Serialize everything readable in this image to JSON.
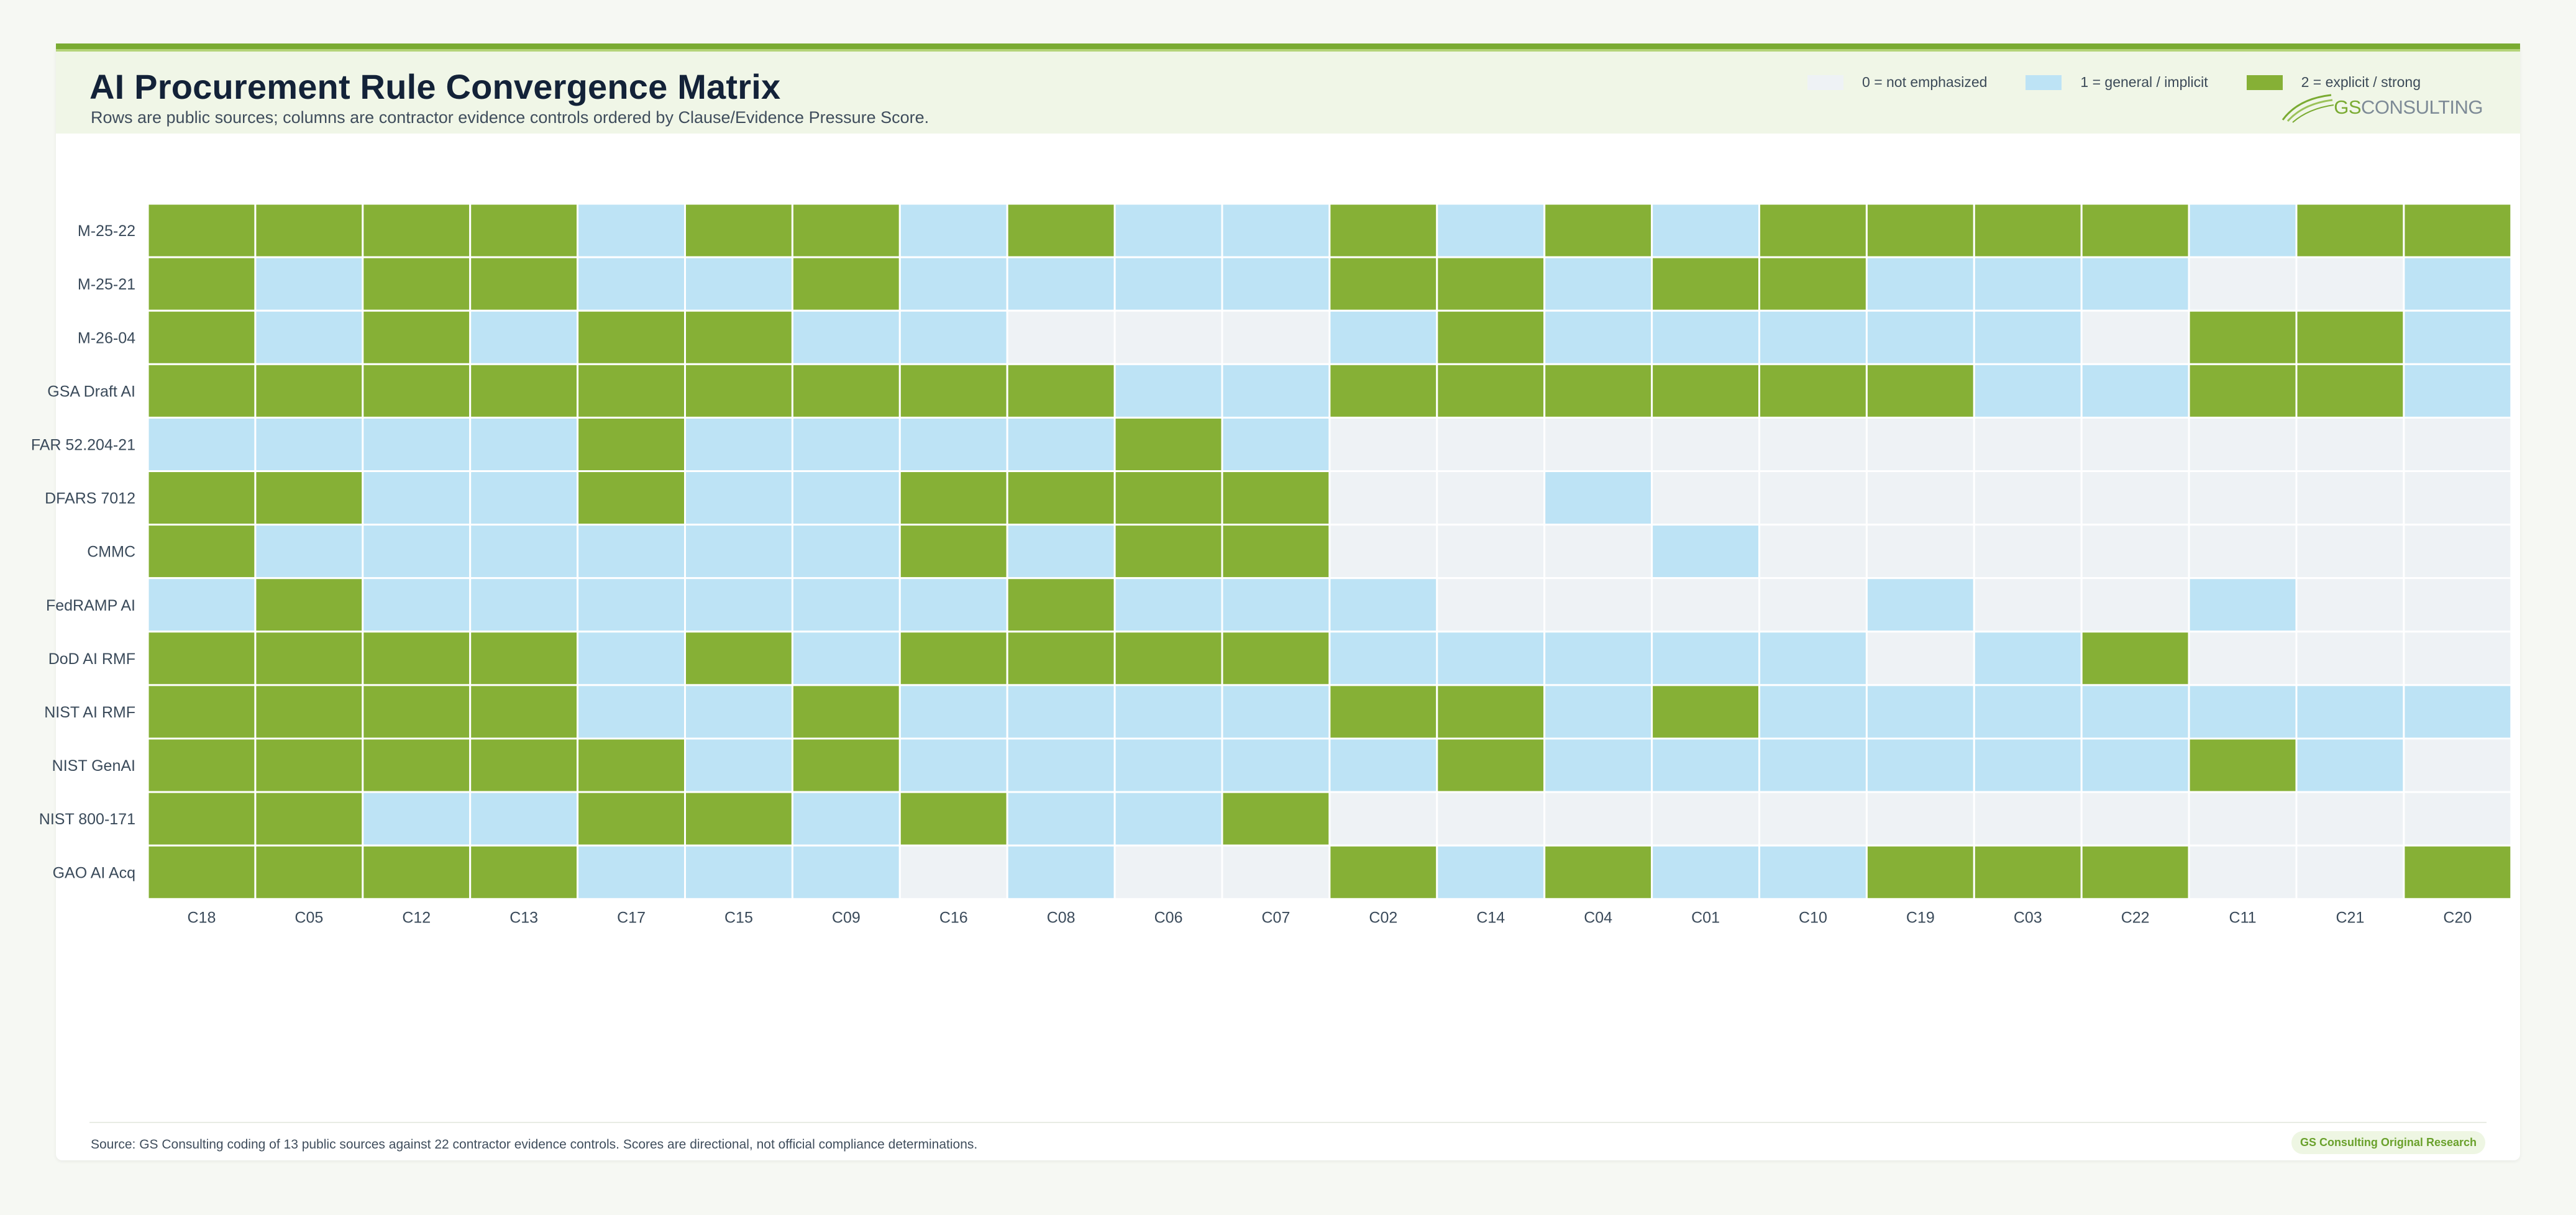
{
  "header": {
    "title": "AI Procurement Rule Convergence Matrix",
    "subtitle": "Rows are public sources; columns are contractor evidence controls ordered by Clause/Evidence Pressure Score."
  },
  "legend": [
    {
      "label": "0 = not emphasized",
      "color": "#eef2f5"
    },
    {
      "label": "1 = general / implicit",
      "color": "#bde3f5"
    },
    {
      "label": "2 = explicit / strong",
      "color": "#86b036"
    }
  ],
  "logo": {
    "gs": "GS",
    "rest": "CONSULTING"
  },
  "chart_data": {
    "type": "heatmap",
    "rows": [
      "M-25-22",
      "M-25-21",
      "M-26-04",
      "GSA Draft AI",
      "FAR 52.204-21",
      "DFARS 7012",
      "CMMC",
      "FedRAMP AI",
      "DoD AI RMF",
      "NIST AI RMF",
      "NIST GenAI",
      "NIST 800-171",
      "GAO AI Acq"
    ],
    "columns": [
      "C18",
      "C05",
      "C12",
      "C13",
      "C17",
      "C15",
      "C09",
      "C16",
      "C08",
      "C06",
      "C07",
      "C02",
      "C14",
      "C04",
      "C01",
      "C10",
      "C19",
      "C03",
      "C22",
      "C11",
      "C21",
      "C20"
    ],
    "values": [
      [
        2,
        2,
        2,
        2,
        1,
        2,
        2,
        1,
        2,
        1,
        1,
        2,
        1,
        2,
        1,
        2,
        2,
        2,
        2,
        1,
        2,
        2
      ],
      [
        2,
        1,
        2,
        2,
        1,
        1,
        2,
        1,
        1,
        1,
        1,
        2,
        2,
        1,
        2,
        2,
        1,
        1,
        1,
        0,
        0,
        1
      ],
      [
        2,
        1,
        2,
        1,
        2,
        2,
        1,
        1,
        0,
        0,
        0,
        1,
        2,
        1,
        1,
        1,
        1,
        1,
        0,
        2,
        2,
        1
      ],
      [
        2,
        2,
        2,
        2,
        2,
        2,
        2,
        2,
        2,
        1,
        1,
        2,
        2,
        2,
        2,
        2,
        2,
        1,
        1,
        2,
        2,
        1
      ],
      [
        1,
        1,
        1,
        1,
        2,
        1,
        1,
        1,
        1,
        2,
        1,
        0,
        0,
        0,
        0,
        0,
        0,
        0,
        0,
        0,
        0,
        0
      ],
      [
        2,
        2,
        1,
        1,
        2,
        1,
        1,
        2,
        2,
        2,
        2,
        0,
        0,
        1,
        0,
        0,
        0,
        0,
        0,
        0,
        0,
        0
      ],
      [
        2,
        1,
        1,
        1,
        1,
        1,
        1,
        2,
        1,
        2,
        2,
        0,
        0,
        0,
        1,
        0,
        0,
        0,
        0,
        0,
        0,
        0
      ],
      [
        1,
        2,
        1,
        1,
        1,
        1,
        1,
        1,
        2,
        1,
        1,
        1,
        0,
        0,
        0,
        0,
        1,
        0,
        0,
        1,
        0,
        0
      ],
      [
        2,
        2,
        2,
        2,
        1,
        2,
        1,
        2,
        2,
        2,
        2,
        1,
        1,
        1,
        1,
        1,
        0,
        1,
        2,
        0,
        0,
        0
      ],
      [
        2,
        2,
        2,
        2,
        1,
        1,
        2,
        1,
        1,
        1,
        1,
        2,
        2,
        1,
        2,
        1,
        1,
        1,
        1,
        1,
        1,
        1
      ],
      [
        2,
        2,
        2,
        2,
        2,
        1,
        2,
        1,
        1,
        1,
        1,
        1,
        2,
        1,
        1,
        1,
        1,
        1,
        1,
        2,
        1,
        0
      ],
      [
        2,
        2,
        1,
        1,
        2,
        2,
        1,
        2,
        1,
        1,
        2,
        0,
        0,
        0,
        0,
        0,
        0,
        0,
        0,
        0,
        0,
        0
      ],
      [
        2,
        2,
        2,
        2,
        1,
        1,
        1,
        0,
        1,
        0,
        0,
        2,
        1,
        2,
        1,
        1,
        2,
        2,
        2,
        0,
        0,
        2
      ]
    ],
    "scale": [
      0,
      1,
      2
    ],
    "colors": [
      "#eef2f5",
      "#bde3f5",
      "#86b036"
    ]
  },
  "footer": {
    "source": "Source: GS Consulting coding of 13 public sources against 22 contractor evidence controls. Scores are directional, not official compliance determinations.",
    "badge": "GS Consulting Original Research"
  }
}
